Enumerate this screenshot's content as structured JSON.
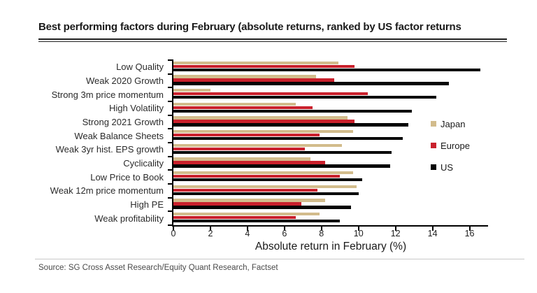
{
  "title": "Best performing factors during February (absolute returns, ranked by US factor returns",
  "source": "Source: SG Cross Asset Research/Equity Quant Research, Factset",
  "chart_data": {
    "type": "bar",
    "orientation": "horizontal",
    "title": "Best performing factors during February (absolute returns, ranked by US factor returns",
    "xlabel": "Absolute return in February (%)",
    "ylabel": "",
    "xlim": [
      0,
      17
    ],
    "xticks": [
      0,
      2,
      4,
      6,
      8,
      10,
      12,
      14,
      16
    ],
    "grid": false,
    "legend_position": "right",
    "bar_order_top_to_bottom": [
      "Japan",
      "Europe",
      "US"
    ],
    "categories": [
      "Low Quality",
      "Weak 2020 Growth",
      "Strong 3m price momentum",
      "High Volatility",
      "Strong 2021 Growth",
      "Weak Balance Sheets",
      "Weak 3yr hist. EPS growth",
      "Cyclicality",
      "Low Price to Book",
      "Weak 12m price momentum",
      "High PE",
      "Weak profitability"
    ],
    "series": [
      {
        "name": "Japan",
        "color": "#d2bc8c",
        "values": [
          8.9,
          7.7,
          2.0,
          6.6,
          9.4,
          9.7,
          9.1,
          7.4,
          9.7,
          9.9,
          8.2,
          7.9
        ]
      },
      {
        "name": "Europe",
        "color": "#c9202c",
        "values": [
          9.8,
          8.7,
          10.5,
          7.5,
          9.8,
          7.9,
          7.1,
          8.2,
          9.0,
          7.8,
          6.9,
          6.6
        ]
      },
      {
        "name": "US",
        "color": "#050505",
        "values": [
          16.6,
          14.9,
          14.2,
          12.9,
          12.7,
          12.4,
          11.8,
          11.7,
          10.2,
          10.0,
          9.6,
          9.0
        ]
      }
    ]
  },
  "legend": {
    "items": [
      {
        "label": "Japan",
        "color": "#d2bc8c"
      },
      {
        "label": "Europe",
        "color": "#c9202c"
      },
      {
        "label": "US",
        "color": "#050505"
      }
    ]
  }
}
